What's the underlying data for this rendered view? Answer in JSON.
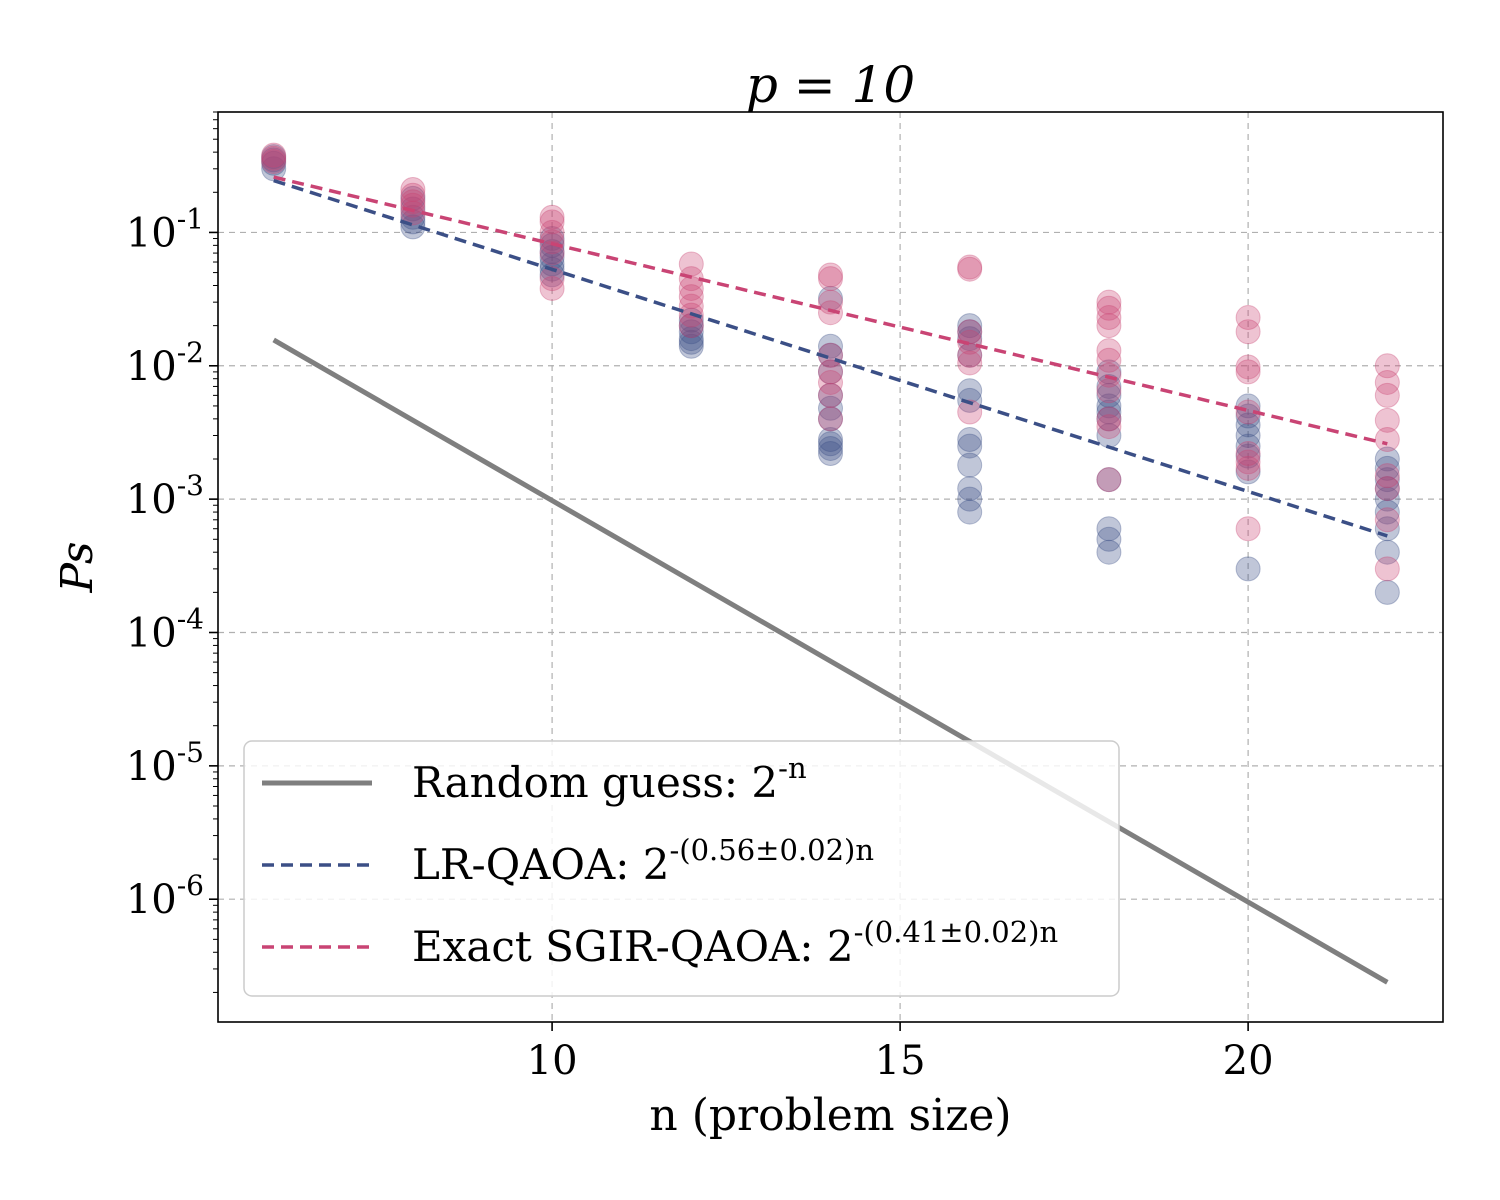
{
  "chart_data": {
    "type": "scatter",
    "title": "p = 10",
    "xlabel": "n (problem size)",
    "ylabel": "Ps",
    "x_ticks": [
      10,
      15,
      20
    ],
    "y_ticks": [
      0.1,
      0.01,
      0.001,
      0.0001,
      1e-05,
      1e-06
    ],
    "y_tick_labels": [
      "10^{-1}",
      "10^{-2}",
      "10^{-3}",
      "10^{-4}",
      "10^{-5}",
      "10^{-6}"
    ],
    "xlim": [
      5.2,
      22.8
    ],
    "ylim": [
      1.2e-07,
      0.8
    ],
    "yscale": "log",
    "grid": true,
    "legend_position": "lower-left",
    "colors": {
      "random": "#7f7f7f",
      "lr": "#3b4f86",
      "sgir": "#c94474"
    },
    "lines": [
      {
        "id": "random",
        "name": "Random guess: 2^{-n}",
        "style": "solid",
        "x": [
          6,
          22
        ],
        "y": [
          0.015625,
          2.38e-07
        ]
      },
      {
        "id": "lr",
        "name": "LR-QAOA: 2^{-(0.56±0.02)n}",
        "style": "dashed",
        "x": [
          6,
          22
        ],
        "y": [
          0.245,
          0.00053
        ]
      },
      {
        "id": "sgir",
        "name": "Exact SGIR-QAOA: 2^{-(0.41±0.02)n}",
        "style": "dashed",
        "x": [
          6,
          22
        ],
        "y": [
          0.26,
          0.0026
        ]
      }
    ],
    "series": [
      {
        "id": "lr",
        "name": "LR-QAOA",
        "points": [
          [
            6,
            0.3
          ],
          [
            6,
            0.33
          ],
          [
            6,
            0.35
          ],
          [
            6,
            0.37
          ],
          [
            8,
            0.11
          ],
          [
            8,
            0.12
          ],
          [
            8,
            0.13
          ],
          [
            8,
            0.15
          ],
          [
            8,
            0.18
          ],
          [
            10,
            0.048
          ],
          [
            10,
            0.053
          ],
          [
            10,
            0.058
          ],
          [
            10,
            0.065
          ],
          [
            10,
            0.072
          ],
          [
            10,
            0.08
          ],
          [
            10,
            0.09
          ],
          [
            12,
            0.014
          ],
          [
            12,
            0.015
          ],
          [
            12,
            0.016
          ],
          [
            12,
            0.018
          ],
          [
            12,
            0.02
          ],
          [
            12,
            0.022
          ],
          [
            14,
            0.032
          ],
          [
            14,
            0.014
          ],
          [
            14,
            0.012
          ],
          [
            14,
            0.009
          ],
          [
            14,
            0.006
          ],
          [
            14,
            0.0048
          ],
          [
            14,
            0.004
          ],
          [
            14,
            0.0028
          ],
          [
            14,
            0.0026
          ],
          [
            14,
            0.0024
          ],
          [
            14,
            0.0022
          ],
          [
            16,
            0.02
          ],
          [
            16,
            0.018
          ],
          [
            16,
            0.016
          ],
          [
            16,
            0.012
          ],
          [
            16,
            0.0065
          ],
          [
            16,
            0.0055
          ],
          [
            16,
            0.0028
          ],
          [
            16,
            0.0025
          ],
          [
            16,
            0.0018
          ],
          [
            16,
            0.0012
          ],
          [
            16,
            0.001
          ],
          [
            16,
            0.0008
          ],
          [
            18,
            0.009
          ],
          [
            18,
            0.007
          ],
          [
            18,
            0.006
          ],
          [
            18,
            0.005
          ],
          [
            18,
            0.0045
          ],
          [
            18,
            0.004
          ],
          [
            18,
            0.003
          ],
          [
            18,
            0.0014
          ],
          [
            18,
            0.0006
          ],
          [
            18,
            0.0005
          ],
          [
            18,
            0.0004
          ],
          [
            20,
            0.005
          ],
          [
            20,
            0.0042
          ],
          [
            20,
            0.0036
          ],
          [
            20,
            0.003
          ],
          [
            20,
            0.0025
          ],
          [
            20,
            0.0021
          ],
          [
            20,
            0.0016
          ],
          [
            20,
            0.0003
          ],
          [
            22,
            0.002
          ],
          [
            22,
            0.0017
          ],
          [
            22,
            0.0014
          ],
          [
            22,
            0.0012
          ],
          [
            22,
            0.001
          ],
          [
            22,
            0.0008
          ],
          [
            22,
            0.0006
          ],
          [
            22,
            0.0004
          ],
          [
            22,
            0.0002
          ]
        ]
      },
      {
        "id": "sgir",
        "name": "Exact SGIR-QAOA",
        "points": [
          [
            6,
            0.34
          ],
          [
            6,
            0.36
          ],
          [
            6,
            0.38
          ],
          [
            8,
            0.21
          ],
          [
            8,
            0.19
          ],
          [
            8,
            0.17
          ],
          [
            8,
            0.16
          ],
          [
            8,
            0.14
          ],
          [
            10,
            0.13
          ],
          [
            10,
            0.12
          ],
          [
            10,
            0.1
          ],
          [
            10,
            0.085
          ],
          [
            10,
            0.07
          ],
          [
            10,
            0.045
          ],
          [
            10,
            0.038
          ],
          [
            12,
            0.058
          ],
          [
            12,
            0.045
          ],
          [
            12,
            0.038
          ],
          [
            12,
            0.033
          ],
          [
            12,
            0.028
          ],
          [
            12,
            0.024
          ],
          [
            12,
            0.02
          ],
          [
            14,
            0.048
          ],
          [
            14,
            0.045
          ],
          [
            14,
            0.03
          ],
          [
            14,
            0.025
          ],
          [
            14,
            0.012
          ],
          [
            14,
            0.009
          ],
          [
            14,
            0.0075
          ],
          [
            14,
            0.006
          ],
          [
            14,
            0.004
          ],
          [
            16,
            0.055
          ],
          [
            16,
            0.053
          ],
          [
            16,
            0.018
          ],
          [
            16,
            0.015
          ],
          [
            16,
            0.012
          ],
          [
            16,
            0.0105
          ],
          [
            16,
            0.0045
          ],
          [
            18,
            0.03
          ],
          [
            18,
            0.027
          ],
          [
            18,
            0.023
          ],
          [
            18,
            0.02
          ],
          [
            18,
            0.013
          ],
          [
            18,
            0.011
          ],
          [
            18,
            0.0085
          ],
          [
            18,
            0.0065
          ],
          [
            18,
            0.004
          ],
          [
            18,
            0.0035
          ],
          [
            18,
            0.0014
          ],
          [
            20,
            0.023
          ],
          [
            20,
            0.018
          ],
          [
            20,
            0.0098
          ],
          [
            20,
            0.009
          ],
          [
            20,
            0.0045
          ],
          [
            20,
            0.0022
          ],
          [
            20,
            0.0019
          ],
          [
            20,
            0.0017
          ],
          [
            20,
            0.0006
          ],
          [
            22,
            0.01
          ],
          [
            22,
            0.0075
          ],
          [
            22,
            0.006
          ],
          [
            22,
            0.0039
          ],
          [
            22,
            0.0028
          ],
          [
            22,
            0.0015
          ],
          [
            22,
            0.0012
          ],
          [
            22,
            0.0007
          ],
          [
            22,
            0.0003
          ]
        ]
      }
    ]
  }
}
